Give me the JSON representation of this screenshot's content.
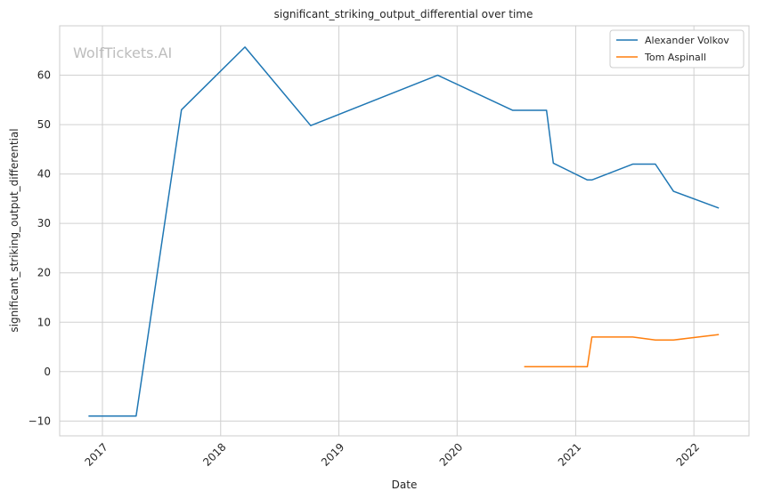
{
  "chart_data": {
    "type": "line",
    "title": "significant_striking_output_differential over time",
    "xlabel": "Date",
    "ylabel": "significant_striking_output_differential",
    "watermark": "WolfTickets.AI",
    "x_ticks": [
      "2017",
      "2018",
      "2019",
      "2020",
      "2021",
      "2022"
    ],
    "y_ticks": [
      -10,
      0,
      10,
      20,
      30,
      40,
      50,
      60
    ],
    "ylim": [
      -13,
      70
    ],
    "xlim": [
      "2016-08-22",
      "2022-06-20"
    ],
    "grid": true,
    "legend_position": "top-right",
    "series": [
      {
        "name": "Alexander Volkov",
        "color": "#1f77b4",
        "points": [
          {
            "date": "2016-11-19",
            "value": -9
          },
          {
            "date": "2017-04-15",
            "value": -9
          },
          {
            "date": "2017-09-02",
            "value": 53
          },
          {
            "date": "2018-03-17",
            "value": 65.7
          },
          {
            "date": "2018-10-06",
            "value": 49.8
          },
          {
            "date": "2019-11-02",
            "value": 60
          },
          {
            "date": "2020-06-20",
            "value": 52.9
          },
          {
            "date": "2020-10-03",
            "value": 52.9
          },
          {
            "date": "2020-10-24",
            "value": 42.2
          },
          {
            "date": "2021-02-06",
            "value": 38.8
          },
          {
            "date": "2021-02-20",
            "value": 38.8
          },
          {
            "date": "2021-06-26",
            "value": 42
          },
          {
            "date": "2021-09-04",
            "value": 42
          },
          {
            "date": "2021-10-30",
            "value": 36.5
          },
          {
            "date": "2022-03-19",
            "value": 33.1
          }
        ]
      },
      {
        "name": "Tom Aspinall",
        "color": "#ff7f0e",
        "points": [
          {
            "date": "2020-07-26",
            "value": 1
          },
          {
            "date": "2021-02-06",
            "value": 1
          },
          {
            "date": "2021-02-20",
            "value": 7
          },
          {
            "date": "2021-06-26",
            "value": 7
          },
          {
            "date": "2021-09-04",
            "value": 6.4
          },
          {
            "date": "2021-10-30",
            "value": 6.4
          },
          {
            "date": "2022-03-19",
            "value": 7.5
          }
        ]
      }
    ]
  }
}
